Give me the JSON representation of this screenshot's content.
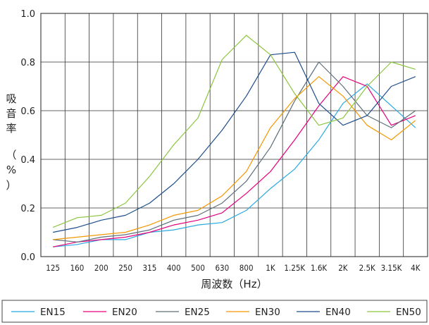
{
  "chart_data": {
    "type": "line",
    "xlabel": "周波数（Hz）",
    "ylabel": [
      "吸",
      "音",
      "率",
      "（",
      "%",
      "）"
    ],
    "categories": [
      "125",
      "160",
      "200",
      "250",
      "315",
      "400",
      "500",
      "630",
      "800",
      "1K",
      "1.25K",
      "1.6K",
      "2K",
      "2.5K",
      "3.15K",
      "4K"
    ],
    "ylim": [
      0,
      1.0
    ],
    "yticks": [
      "0.0",
      "0.2",
      "0.4",
      "0.6",
      "0.8",
      "1.0"
    ],
    "grid": true,
    "legend_position": "bottom",
    "series": [
      {
        "name": "EN15",
        "color": "#29a9e0",
        "values": [
          0.04,
          0.05,
          0.07,
          0.07,
          0.1,
          0.11,
          0.13,
          0.14,
          0.19,
          0.28,
          0.36,
          0.48,
          0.63,
          0.71,
          0.62,
          0.53
        ]
      },
      {
        "name": "EN20",
        "color": "#e6007e",
        "values": [
          0.04,
          0.06,
          0.07,
          0.08,
          0.1,
          0.13,
          0.15,
          0.18,
          0.26,
          0.35,
          0.48,
          0.62,
          0.74,
          0.7,
          0.54,
          0.58
        ]
      },
      {
        "name": "EN25",
        "color": "#5d6f7a",
        "values": [
          0.07,
          0.06,
          0.08,
          0.09,
          0.11,
          0.15,
          0.17,
          0.22,
          0.31,
          0.45,
          0.64,
          0.8,
          0.7,
          0.58,
          0.53,
          0.6
        ]
      },
      {
        "name": "EN30",
        "color": "#f39800",
        "values": [
          0.07,
          0.08,
          0.09,
          0.1,
          0.13,
          0.17,
          0.19,
          0.25,
          0.35,
          0.53,
          0.65,
          0.74,
          0.66,
          0.54,
          0.48,
          0.56
        ]
      },
      {
        "name": "EN40",
        "color": "#1d4e8c",
        "values": [
          0.1,
          0.12,
          0.15,
          0.17,
          0.22,
          0.3,
          0.4,
          0.52,
          0.66,
          0.83,
          0.84,
          0.63,
          0.54,
          0.58,
          0.7,
          0.74
        ]
      },
      {
        "name": "EN50",
        "color": "#8cc63f",
        "values": [
          0.12,
          0.16,
          0.17,
          0.22,
          0.33,
          0.46,
          0.57,
          0.81,
          0.91,
          0.83,
          0.67,
          0.54,
          0.57,
          0.7,
          0.8,
          0.77
        ]
      }
    ]
  }
}
